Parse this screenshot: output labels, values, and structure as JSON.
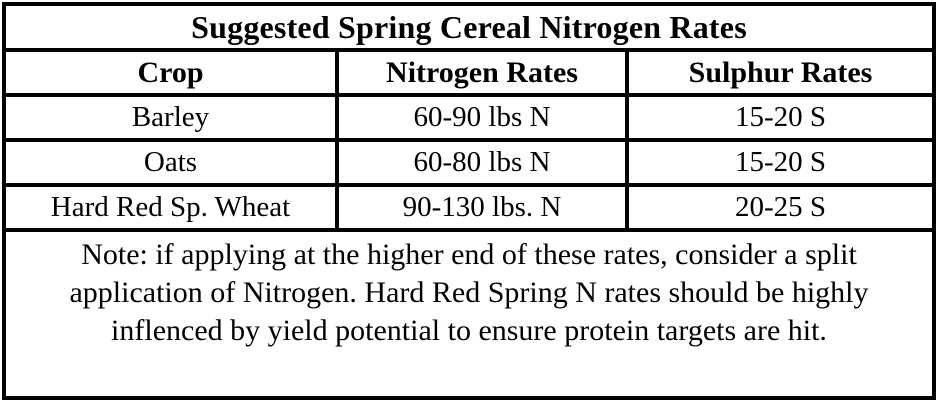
{
  "title": "Suggested Spring Cereal Nitrogen Rates",
  "table": {
    "columns": [
      "Crop",
      "Nitrogen Rates",
      "Sulphur Rates"
    ],
    "rows": [
      {
        "crop": "Barley",
        "nitrogen": "60-90 lbs N",
        "sulphur": "15-20 S"
      },
      {
        "crop": "Oats",
        "nitrogen": "60-80 lbs N",
        "sulphur": "15-20 S"
      },
      {
        "crop": "Hard Red Sp. Wheat",
        "nitrogen": "90-130 lbs. N",
        "sulphur": "20-25 S"
      }
    ]
  },
  "note": "Note: if applying at the higher end of these rates, consider a split application of Nitrogen. Hard Red Spring N rates should be highly inflenced by yield potential to ensure protein targets are hit.",
  "colors": {
    "border": "#000000",
    "text": "#000000",
    "background": "#ffffff"
  }
}
